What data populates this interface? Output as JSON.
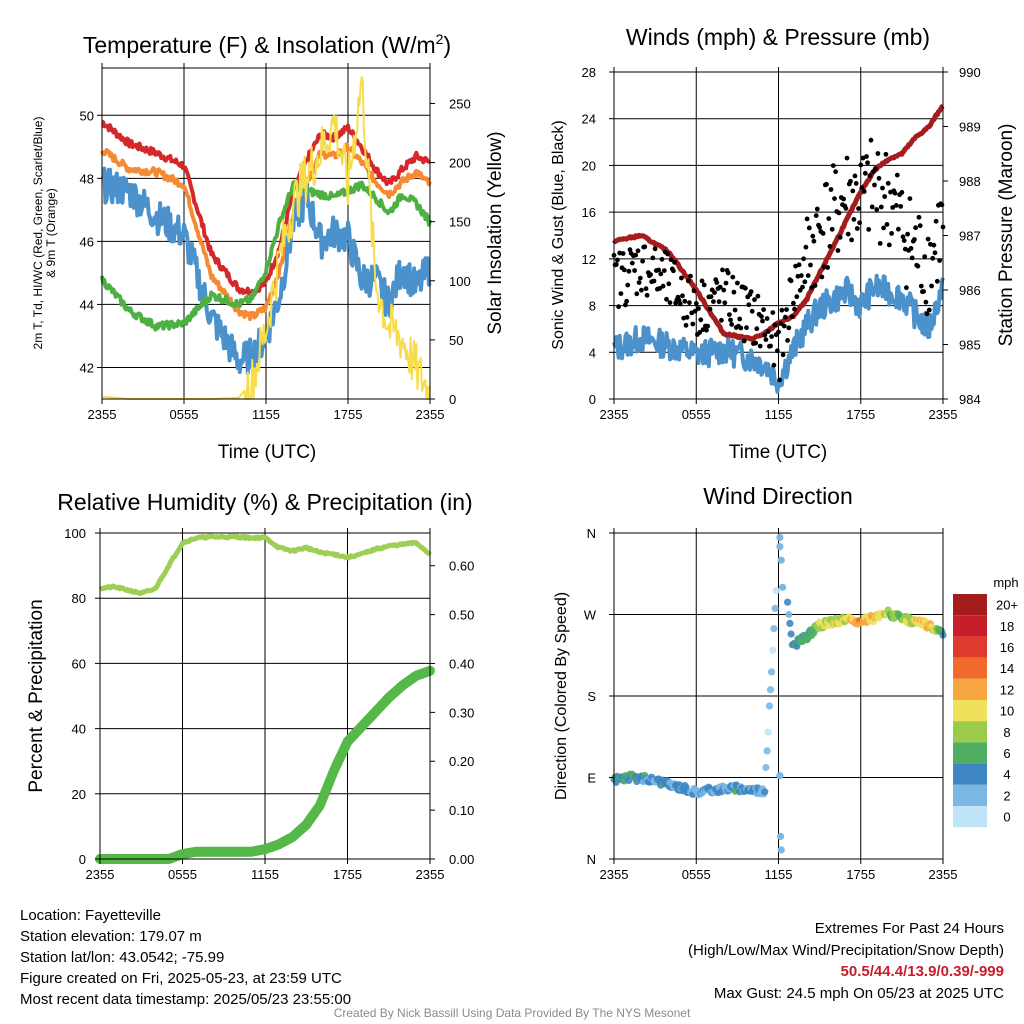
{
  "colors": {
    "temp_red": "#d6282a",
    "temp_orange": "#f58a32",
    "dewpoint_green": "#4cb043",
    "windchill_blue": "#4b92cc",
    "insolation_yellow": "#f7dd4a",
    "wind_blue": "#4b92cc",
    "gust_black": "#000000",
    "pressure_maroon": "#a51c1c",
    "rh_green": "#9dcf55",
    "precip_green": "#55b848"
  },
  "x_ticks": [
    "2355",
    "0555",
    "1155",
    "1755",
    "2355"
  ],
  "chart_data": [
    {
      "type": "line",
      "title": "Temperature (F) & Insolation (W/m²)",
      "xlabel": "Time (UTC)",
      "ylabel": "2m T, T_d, HI/WC (Red, Green, Scarlet/Blue) & 9m T (Orange)",
      "ylabel_line1": "2m T, Td, HI/WC (Red, Green, Scarlet/Blue)",
      "ylabel_line2": "& 9m T (Orange)",
      "y2label": "Solar Insolation (Yellow)",
      "ylim": [
        41,
        51.5
      ],
      "y_ticks": [
        42,
        44,
        46,
        48,
        50
      ],
      "y2lim": [
        0,
        280
      ],
      "y2_ticks": [
        0,
        50,
        100,
        150,
        200,
        250
      ],
      "x_hours": [
        0,
        2,
        4,
        6,
        8,
        10,
        11,
        12,
        13,
        14,
        15,
        16,
        17,
        18,
        19,
        20,
        21,
        22,
        23,
        24
      ],
      "series": [
        {
          "color_key": "temp_red",
          "values": [
            49.8,
            49.1,
            48.8,
            48.4,
            45.6,
            44.5,
            44.4,
            44.7,
            45.8,
            47.6,
            48.6,
            49.4,
            49.3,
            49.6,
            49.0,
            48.3,
            47.8,
            48.3,
            48.7,
            48.5
          ]
        },
        {
          "color_key": "temp_orange",
          "values": [
            48.9,
            48.3,
            48.2,
            47.8,
            44.9,
            43.8,
            43.6,
            43.9,
            45.1,
            46.9,
            47.9,
            48.8,
            48.7,
            49.0,
            48.5,
            47.9,
            47.5,
            47.9,
            48.2,
            47.8
          ]
        },
        {
          "color_key": "windchill_blue",
          "values": [
            47.8,
            47.6,
            46.8,
            46.2,
            43.6,
            42.2,
            42.4,
            43.0,
            44.3,
            46.6,
            47.4,
            46.0,
            46.3,
            46.1,
            44.8,
            44.8,
            44.0,
            45.2,
            44.5,
            45.2
          ]
        },
        {
          "color_key": "dewpoint_green",
          "values": [
            44.8,
            43.8,
            43.3,
            43.4,
            44.3,
            44.0,
            44.2,
            45.1,
            46.6,
            47.8,
            47.6,
            47.5,
            47.4,
            47.6,
            47.8,
            47.4,
            46.9,
            47.5,
            47.2,
            46.6
          ]
        },
        {
          "color_key": "insolation_yellow",
          "axis": "y2",
          "values": [
            2,
            0,
            0,
            0,
            0,
            1,
            15,
            60,
            120,
            165,
            190,
            210,
            235,
            180,
            270,
            100,
            60,
            50,
            25,
            5
          ]
        }
      ]
    },
    {
      "type": "scatter",
      "title": "Winds (mph) & Pressure (mb)",
      "xlabel": "Time (UTC)",
      "ylabel": "Sonic Wind & Gust (Blue, Black)",
      "y2label": "Station Pressure (Maroon)",
      "ylim": [
        0,
        28
      ],
      "y_ticks": [
        0,
        4,
        8,
        12,
        16,
        20,
        24,
        28
      ],
      "y2lim": [
        984,
        990
      ],
      "y2_ticks": [
        984,
        985,
        986,
        987,
        988,
        989,
        990
      ],
      "x_hours": [
        0,
        2,
        4,
        6,
        8,
        10,
        11,
        12,
        13,
        14,
        15,
        16,
        17,
        18,
        19,
        20,
        21,
        22,
        23,
        24
      ],
      "series": [
        {
          "name_hidden": "wind",
          "color_key": "wind_blue",
          "values": [
            4.3,
            5.2,
            4.6,
            3.8,
            4.2,
            3.5,
            3.0,
            1.6,
            4.0,
            6.2,
            7.8,
            8.5,
            9.2,
            8.0,
            9.6,
            9.2,
            8.8,
            7.2,
            6.0,
            9.8
          ]
        },
        {
          "name_hidden": "gust",
          "color_key": "gust_black",
          "values": [
            10.0,
            11.5,
            9.8,
            7.8,
            8.8,
            7.0,
            6.2,
            3.8,
            9.0,
            11.5,
            14.5,
            15.5,
            17.2,
            17.0,
            18.0,
            17.2,
            14.8,
            12.5,
            11.5,
            15.0
          ]
        },
        {
          "name_hidden": "pressure",
          "color_key": "pressure_maroon",
          "axis": "y2",
          "values": [
            986.9,
            987.0,
            986.7,
            986.0,
            985.2,
            985.1,
            985.2,
            985.4,
            985.5,
            985.8,
            986.3,
            986.8,
            987.3,
            987.8,
            988.2,
            988.4,
            988.5,
            988.8,
            989.0,
            989.4
          ]
        }
      ]
    },
    {
      "type": "line",
      "title": "Relative Humidity (%) & Precipitation (in)",
      "xlabel": "",
      "ylabel": "Percent & Precipitation",
      "ylim": [
        0,
        100
      ],
      "y_ticks": [
        0,
        20,
        40,
        60,
        80,
        100
      ],
      "y2lim": [
        0,
        0.667
      ],
      "y2_ticks": [
        "0.00",
        "0.10",
        "0.20",
        "0.30",
        "0.40",
        "0.50",
        "0.60"
      ],
      "x_hours": [
        0,
        1,
        2,
        3,
        4,
        5,
        6,
        7,
        8,
        9,
        10,
        11,
        12,
        13,
        14,
        15,
        16,
        17,
        18,
        19,
        20,
        21,
        22,
        23,
        24
      ],
      "series": [
        {
          "color_key": "rh_green",
          "values": [
            83,
            83.5,
            82.5,
            81.5,
            82.8,
            90,
            97,
            98.5,
            98.8,
            98.8,
            98.8,
            98.5,
            98.6,
            95.5,
            94.5,
            95.5,
            94,
            93.5,
            92.5,
            93.5,
            95,
            96,
            96.5,
            97,
            93.5
          ]
        },
        {
          "color_key": "precip_green",
          "axis": "y2",
          "values": [
            0,
            0,
            0,
            0,
            0,
            0,
            0.01,
            0.015,
            0.015,
            0.015,
            0.015,
            0.015,
            0.02,
            0.03,
            0.045,
            0.07,
            0.11,
            0.18,
            0.24,
            0.27,
            0.3,
            0.33,
            0.355,
            0.375,
            0.385
          ]
        }
      ]
    },
    {
      "type": "scatter",
      "title": "Wind Direction",
      "xlabel": "",
      "ylabel": "Direction (Colored By Speed)",
      "y_ticks": [
        "N",
        "E",
        "S",
        "W",
        "N"
      ],
      "ylim": [
        0,
        360
      ],
      "colorbar_title": "mph",
      "colorbar_labels": [
        "20+",
        "18",
        "16",
        "14",
        "12",
        "10",
        "8",
        "6",
        "4",
        "2",
        "0"
      ],
      "colorbar_colors": [
        "#a51c1c",
        "#c81e2c",
        "#e03a2f",
        "#f16a2b",
        "#f7a641",
        "#f0e05a",
        "#9bcb4a",
        "#4fae62",
        "#3f86c4",
        "#7ab8e3",
        "#bfe4f7"
      ],
      "x_hours": [
        0,
        1,
        2,
        3,
        3.5,
        4,
        5,
        6,
        7,
        8,
        9,
        10,
        11,
        12,
        12.5,
        13,
        14,
        15,
        16,
        17,
        18,
        19,
        20,
        21,
        22,
        23,
        24
      ],
      "values": [
        88,
        90,
        89,
        87,
        85,
        82,
        79,
        74,
        76,
        78,
        78,
        77,
        75,
        345,
        305,
        235,
        245,
        258,
        262,
        264,
        262,
        266,
        272,
        265,
        262,
        258,
        250
      ],
      "speeds": [
        4,
        5,
        4,
        3,
        4,
        3,
        4,
        3,
        3,
        3,
        4,
        3,
        2,
        1,
        2,
        5,
        5,
        8,
        9,
        10,
        13,
        10,
        8,
        7,
        10,
        11,
        6
      ]
    }
  ],
  "footer": {
    "location": "Location: Fayetteville",
    "elevation": "Station elevation: 179.07 m",
    "latlon": "Station lat/lon: 43.0542; -75.99",
    "created": "Figure created on Fri, 2025-05-23, at 23:59 UTC",
    "recent": "Most recent data timestamp: 2025/05/23 23:55:00",
    "extremes_title": "Extremes For Past 24 Hours",
    "extremes_subtitle": "(High/Low/Max Wind/Precipitation/Snow Depth)",
    "extremes_values": "50.5/44.4/13.9/0.39/-999",
    "max_gust": "Max Gust: 24.5 mph On 05/23 at 2025 UTC",
    "credit": "Created By Nick Bassill Using Data Provided By The NYS Mesonet"
  }
}
